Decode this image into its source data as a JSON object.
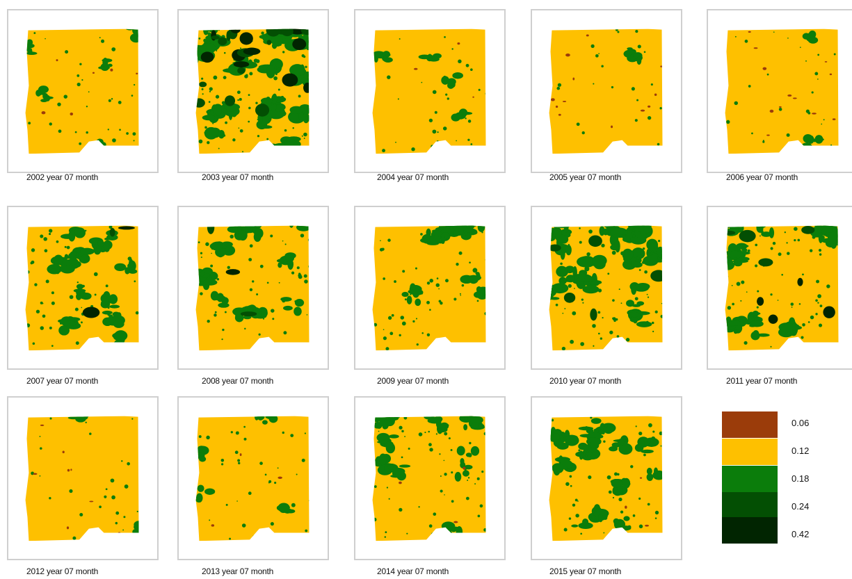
{
  "colors": {
    "c006": "#9b3c0a",
    "c012": "#fec000",
    "c018": "#0b7d0b",
    "c024": "#034f03",
    "c042": "#012501"
  },
  "legend": [
    {
      "label": "0.06",
      "color": "#9b3c0a"
    },
    {
      "label": "0.12",
      "color": "#fec000"
    },
    {
      "label": "0.18",
      "color": "#0b7d0b"
    },
    {
      "label": "0.24",
      "color": "#034f03"
    },
    {
      "label": "0.42",
      "color": "#012501"
    }
  ],
  "maps": [
    {
      "label": "2002 year 07 month",
      "green_level": 0.12,
      "dark_level": 0.0,
      "red_level": 0.1
    },
    {
      "label": "2003 year 07 month",
      "green_level": 0.55,
      "dark_level": 0.55,
      "red_level": 0.0
    },
    {
      "label": "2004 year 07 month",
      "green_level": 0.1,
      "dark_level": 0.0,
      "red_level": 0.05
    },
    {
      "label": "2005 year 07 month",
      "green_level": 0.02,
      "dark_level": 0.0,
      "red_level": 0.2
    },
    {
      "label": "2006 year 07 month",
      "green_level": 0.05,
      "dark_level": 0.0,
      "red_level": 0.2
    },
    {
      "label": "2007 year 07 month",
      "green_level": 0.3,
      "dark_level": 0.05,
      "red_level": 0.0
    },
    {
      "label": "2008 year 07 month",
      "green_level": 0.3,
      "dark_level": 0.05,
      "red_level": 0.0
    },
    {
      "label": "2009 year 07 month",
      "green_level": 0.28,
      "dark_level": 0.0,
      "red_level": 0.0
    },
    {
      "label": "2010 year 07 month",
      "green_level": 0.5,
      "dark_level": 0.1,
      "red_level": 0.0
    },
    {
      "label": "2011 year 07 month",
      "green_level": 0.38,
      "dark_level": 0.15,
      "red_level": 0.0
    },
    {
      "label": "2012 year 07 month",
      "green_level": 0.06,
      "dark_level": 0.0,
      "red_level": 0.15
    },
    {
      "label": "2013 year 07 month",
      "green_level": 0.12,
      "dark_level": 0.0,
      "red_level": 0.05
    },
    {
      "label": "2014 year 07 month",
      "green_level": 0.28,
      "dark_level": 0.0,
      "red_level": 0.05
    },
    {
      "label": "2015 year 07 month",
      "green_level": 0.35,
      "dark_level": 0.0,
      "red_level": 0.05
    }
  ]
}
